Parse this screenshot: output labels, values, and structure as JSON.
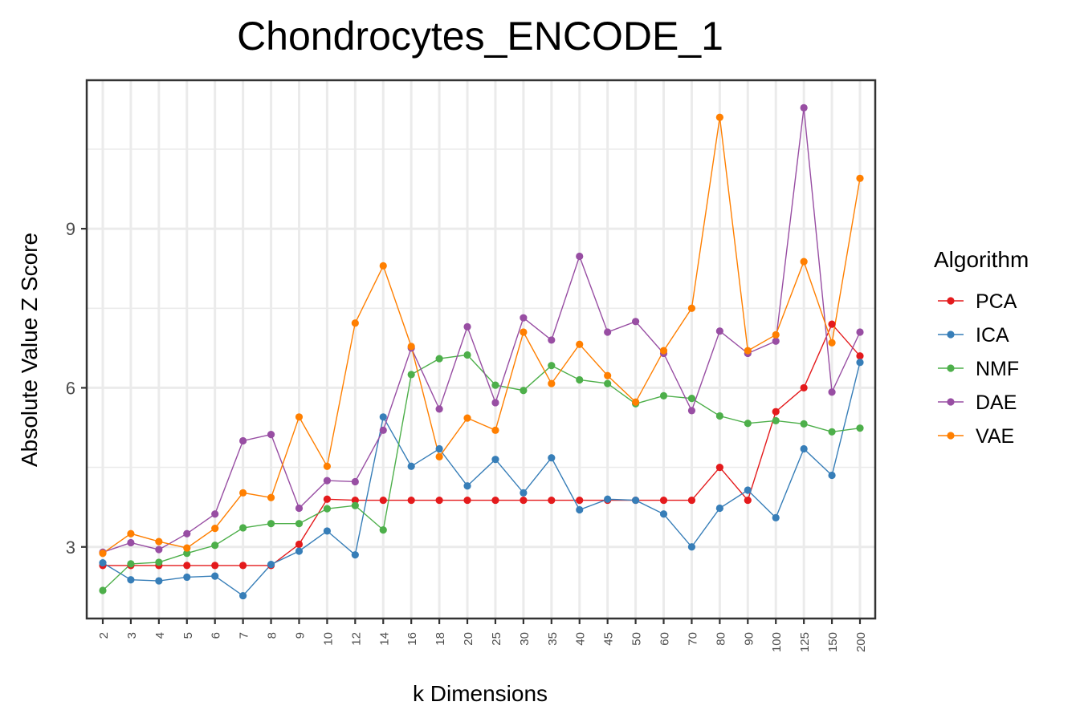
{
  "chart_data": {
    "type": "line",
    "title": "Chondrocytes_ENCODE_1",
    "xlabel": "k Dimensions",
    "ylabel": "Absolute Value Z Score",
    "categories": [
      "2",
      "3",
      "4",
      "5",
      "6",
      "7",
      "8",
      "9",
      "10",
      "12",
      "14",
      "16",
      "18",
      "20",
      "25",
      "30",
      "35",
      "40",
      "45",
      "50",
      "60",
      "70",
      "80",
      "90",
      "100",
      "125",
      "150",
      "200"
    ],
    "yticks": [
      3,
      6,
      9
    ],
    "ylim": [
      1.65,
      11.8
    ],
    "grid": true,
    "legend": {
      "title": "Algorithm",
      "position": "right"
    },
    "series": [
      {
        "name": "PCA",
        "color": "#e41a1c",
        "values": [
          2.65,
          2.65,
          2.65,
          2.65,
          2.65,
          2.65,
          2.65,
          3.05,
          3.9,
          3.88,
          3.88,
          3.88,
          3.88,
          3.88,
          3.88,
          3.88,
          3.88,
          3.88,
          3.88,
          3.88,
          3.88,
          3.88,
          4.5,
          3.88,
          5.55,
          6.0,
          7.2,
          6.6
        ]
      },
      {
        "name": "ICA",
        "color": "#377eb8",
        "values": [
          2.7,
          2.38,
          2.36,
          2.43,
          2.45,
          2.08,
          2.67,
          2.92,
          3.3,
          2.85,
          5.45,
          4.52,
          4.85,
          4.15,
          4.65,
          4.02,
          4.68,
          3.7,
          3.9,
          3.88,
          3.62,
          3.0,
          3.73,
          4.07,
          3.55,
          4.85,
          4.35,
          6.48
        ]
      },
      {
        "name": "NMF",
        "color": "#4daf4a",
        "values": [
          2.18,
          2.68,
          2.71,
          2.88,
          3.03,
          3.36,
          3.44,
          3.44,
          3.72,
          3.78,
          3.32,
          6.25,
          6.55,
          6.62,
          6.05,
          5.95,
          6.42,
          6.15,
          6.08,
          5.7,
          5.85,
          5.8,
          5.47,
          5.33,
          5.38,
          5.32,
          5.17,
          5.24
        ]
      },
      {
        "name": "DAE",
        "color": "#984ea3",
        "values": [
          2.9,
          3.08,
          2.95,
          3.25,
          3.62,
          5.0,
          5.12,
          3.73,
          4.25,
          4.23,
          5.2,
          6.75,
          5.6,
          7.15,
          5.72,
          7.32,
          6.9,
          8.48,
          7.05,
          7.25,
          6.65,
          5.57,
          7.07,
          6.65,
          6.88,
          11.28,
          5.92,
          7.05
        ]
      },
      {
        "name": "VAE",
        "color": "#ff7f00",
        "values": [
          2.88,
          3.25,
          3.1,
          2.98,
          3.35,
          4.02,
          3.93,
          5.45,
          4.52,
          7.22,
          8.3,
          6.78,
          4.7,
          5.43,
          5.2,
          7.05,
          6.08,
          6.82,
          6.23,
          5.73,
          6.7,
          7.5,
          11.1,
          6.7,
          7.0,
          8.38,
          6.85,
          9.95
        ]
      }
    ]
  }
}
